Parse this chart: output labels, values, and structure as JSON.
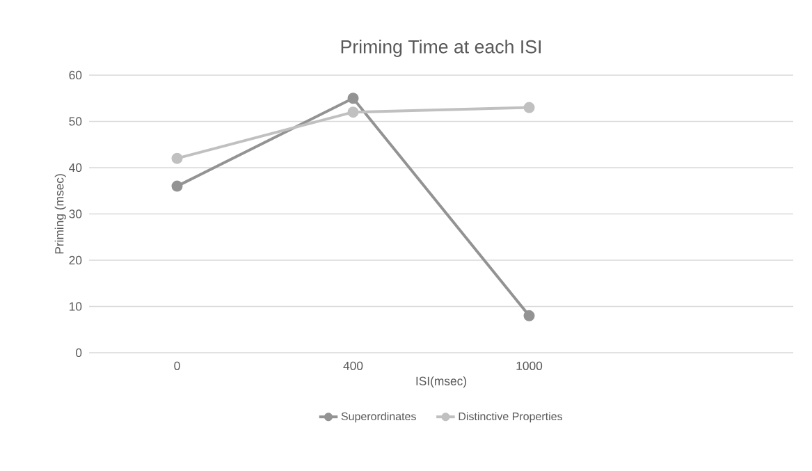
{
  "chart_data": {
    "type": "line",
    "title": "Priming Time at each ISI",
    "xlabel": "ISI(msec)",
    "ylabel": "Priming (msec)",
    "categories": [
      "0",
      "400",
      "1000",
      null
    ],
    "series": [
      {
        "name": "Superordinates",
        "color": "#939393",
        "values": [
          36,
          55,
          8,
          null
        ]
      },
      {
        "name": "Distinctive Properties",
        "color": "#c0c0c0",
        "values": [
          42,
          52,
          53,
          null
        ]
      }
    ],
    "ylim": [
      0,
      60
    ],
    "yticks": [
      0,
      10,
      20,
      30,
      40,
      50,
      60
    ],
    "grid": "y",
    "legend": "bottom",
    "marker": "circle",
    "line_style": "solid"
  }
}
